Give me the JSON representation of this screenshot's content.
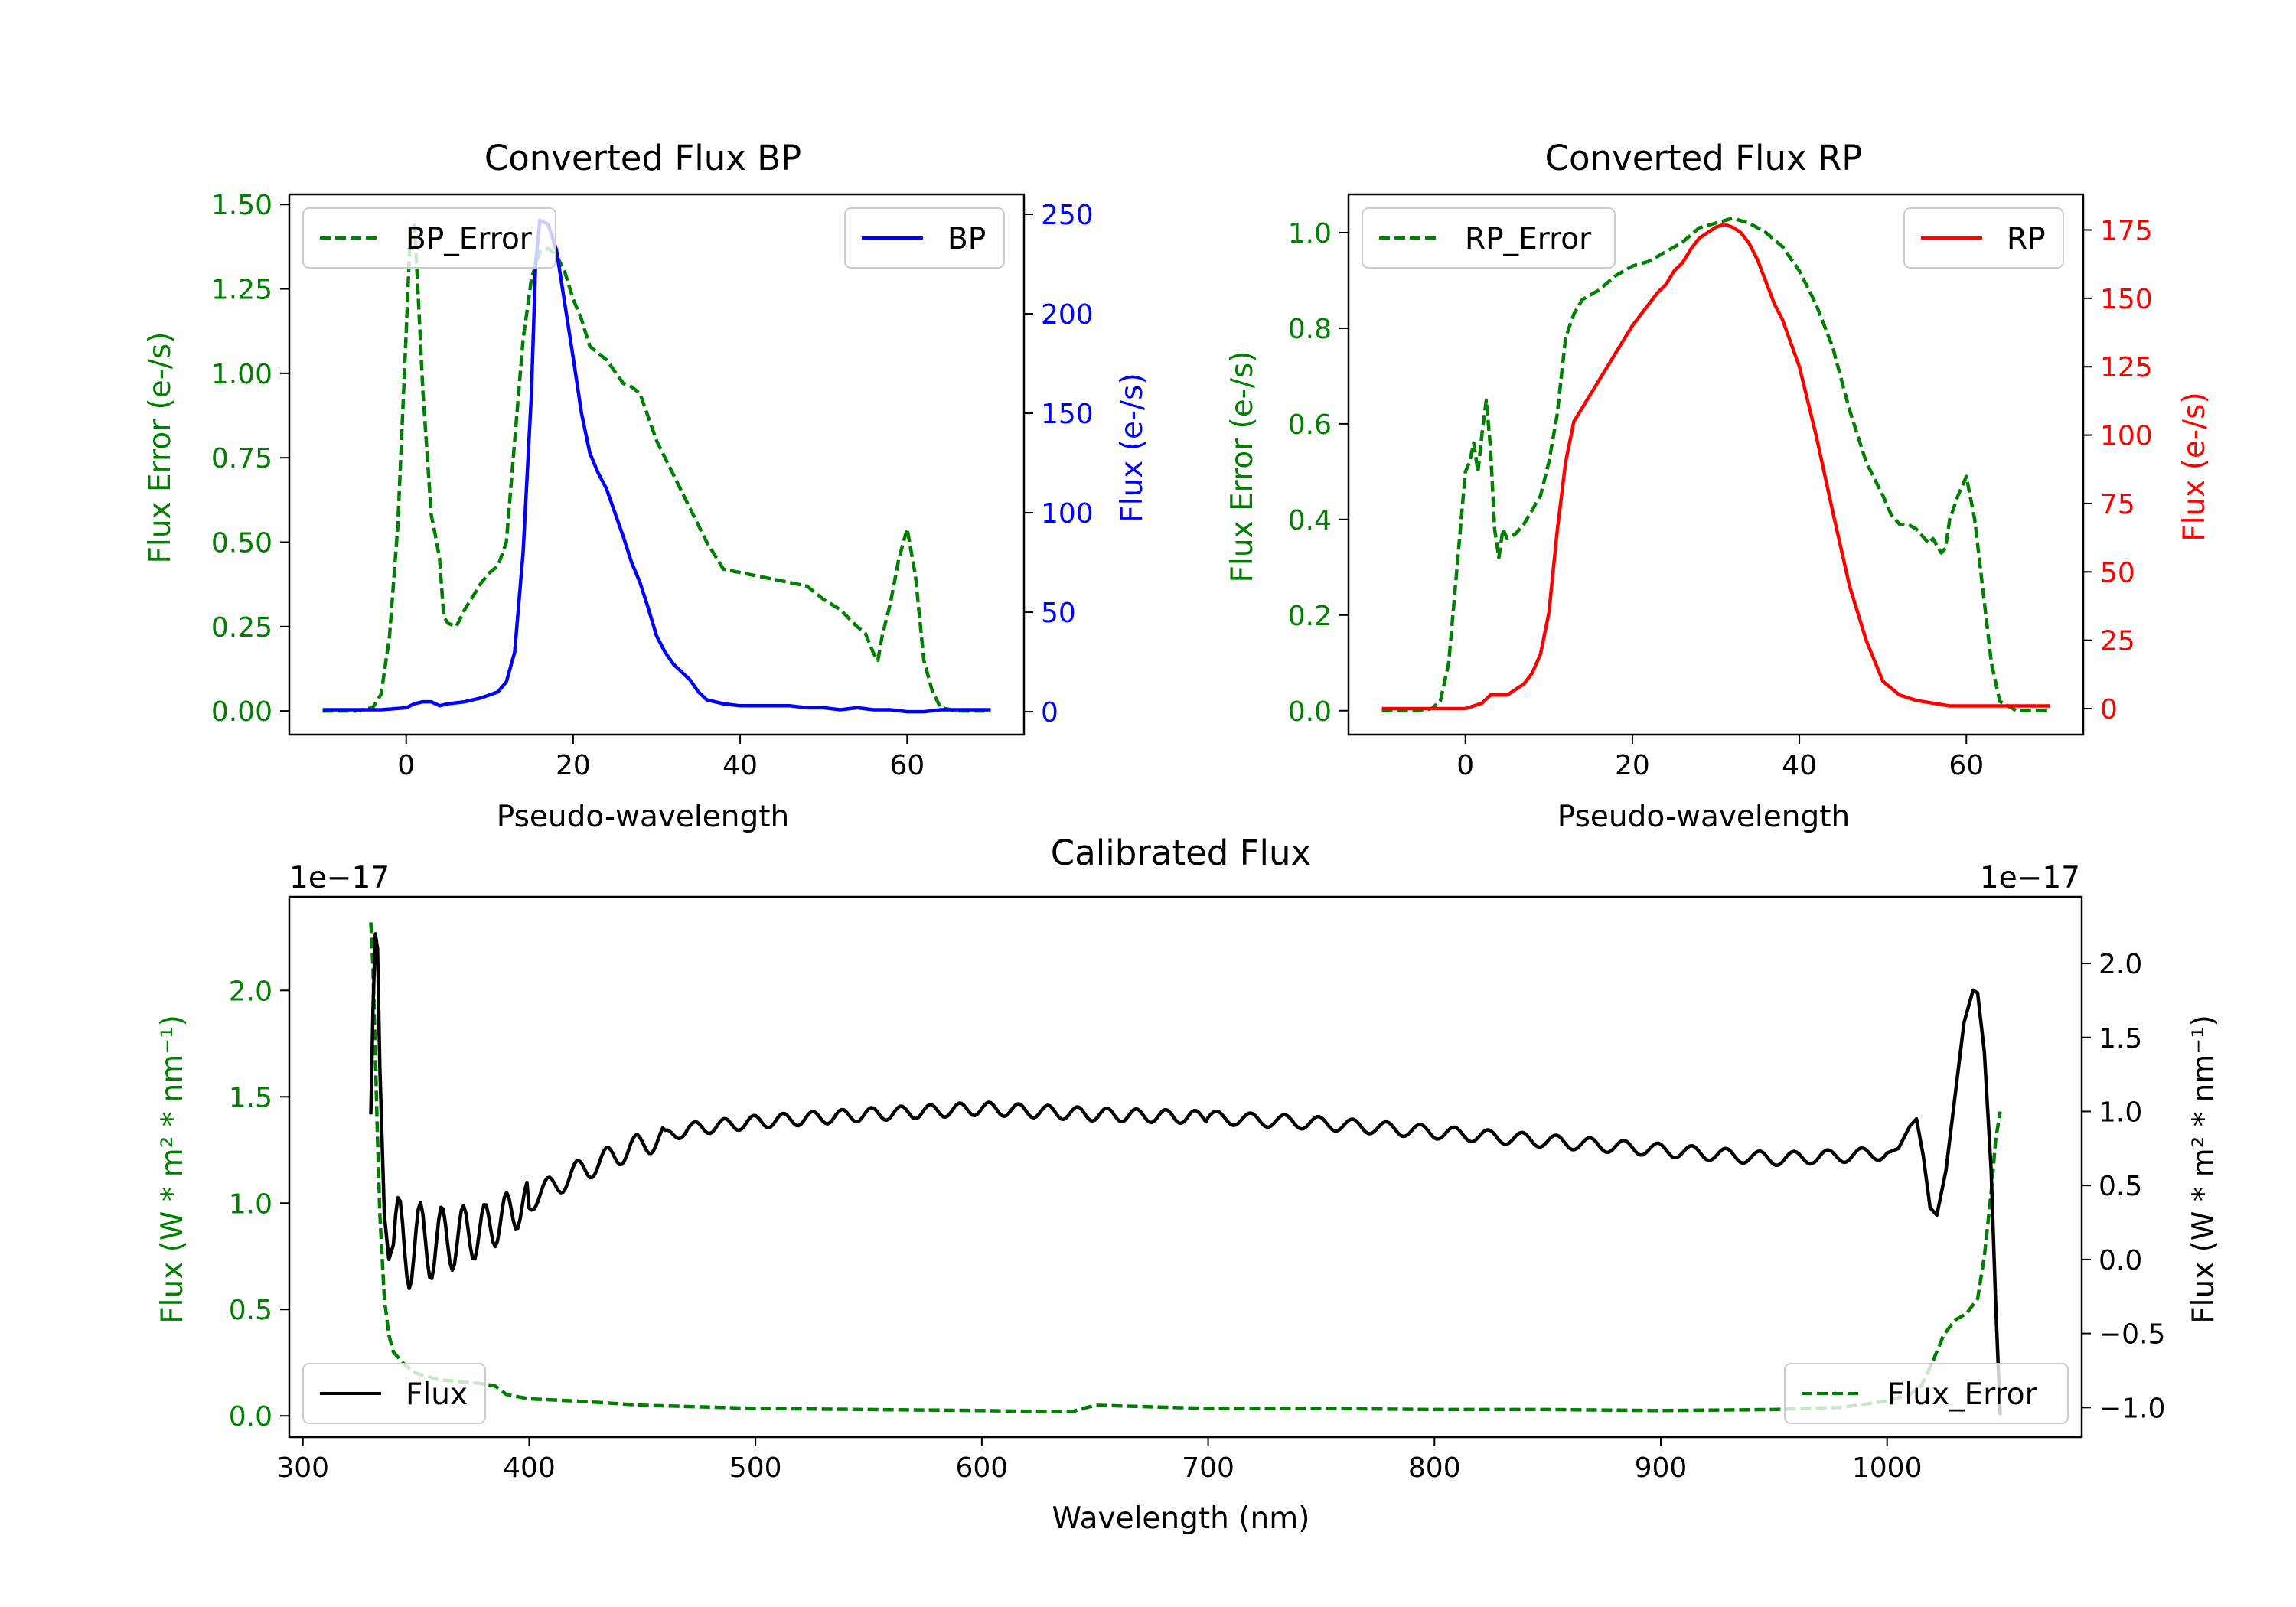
{
  "chart_data": [
    {
      "id": "bp",
      "type": "line",
      "title": "Converted Flux BP",
      "xlabel": "Pseudo-wavelength",
      "ylabel_left": "Flux Error (e-/s)",
      "ylabel_right": "Flux (e-/s)",
      "xlim": [
        -14,
        74
      ],
      "ylim_left": [
        -0.07,
        1.53
      ],
      "ylim_right": [
        -11.5,
        260
      ],
      "xticks": [
        0,
        20,
        40,
        60
      ],
      "yticks_left": [
        0.0,
        0.25,
        0.5,
        0.75,
        1.0,
        1.25,
        1.5
      ],
      "yticks_left_labels": [
        "0.00",
        "0.25",
        "0.50",
        "0.75",
        "1.00",
        "1.25",
        "1.50"
      ],
      "yticks_right": [
        0,
        50,
        100,
        150,
        200,
        250
      ],
      "left_color": "#008000",
      "right_color": "#0000ff",
      "legend_left": {
        "label": "BP_Error",
        "position": "upper left"
      },
      "legend_right": {
        "label": "BP",
        "position": "upper right"
      },
      "series": [
        {
          "name": "BP_Error",
          "axis": "left",
          "color": "#008000",
          "style": "dashed",
          "x": [
            -10,
            -6,
            -4,
            -3,
            -2,
            -1,
            0,
            0.5,
            1,
            1.5,
            2,
            3,
            3.5,
            4,
            4.5,
            5,
            6,
            7,
            8,
            9,
            10,
            11,
            12,
            13,
            14,
            15,
            16,
            17,
            18,
            19,
            20,
            21,
            22,
            24,
            26,
            27,
            28,
            30,
            32,
            34,
            36,
            38,
            40,
            42,
            44,
            46,
            48,
            50,
            52,
            54,
            55,
            56,
            56.5,
            57,
            58,
            59,
            60,
            61,
            62,
            63,
            64,
            66,
            70
          ],
          "y": [
            0,
            0,
            0.01,
            0.05,
            0.22,
            0.55,
            1.12,
            1.42,
            1.44,
            1.2,
            0.95,
            0.58,
            0.52,
            0.45,
            0.28,
            0.26,
            0.25,
            0.3,
            0.34,
            0.38,
            0.41,
            0.43,
            0.5,
            0.8,
            1.1,
            1.28,
            1.36,
            1.37,
            1.35,
            1.3,
            1.22,
            1.16,
            1.08,
            1.04,
            0.97,
            0.96,
            0.94,
            0.8,
            0.7,
            0.6,
            0.5,
            0.42,
            0.41,
            0.4,
            0.39,
            0.38,
            0.37,
            0.33,
            0.3,
            0.25,
            0.23,
            0.17,
            0.15,
            0.22,
            0.32,
            0.45,
            0.54,
            0.4,
            0.15,
            0.06,
            0.01,
            0,
            0
          ]
        },
        {
          "name": "BP",
          "axis": "right",
          "color": "#0000ff",
          "style": "solid",
          "x": [
            -10,
            -5,
            -3,
            0,
            1,
            2,
            3,
            4,
            5,
            7,
            9,
            11,
            12,
            13,
            14,
            15,
            15.5,
            16,
            17,
            18,
            19,
            20,
            21,
            22,
            23,
            24,
            25,
            26,
            27,
            28,
            29,
            30,
            31,
            32,
            33,
            34,
            35,
            36,
            38,
            40,
            42,
            44,
            46,
            48,
            50,
            52,
            54,
            56,
            58,
            60,
            62,
            64,
            66,
            68,
            70
          ],
          "y": [
            1,
            1,
            1,
            2,
            4,
            5,
            5,
            3,
            4,
            5,
            7,
            10,
            15,
            30,
            80,
            160,
            225,
            247,
            245,
            232,
            205,
            178,
            150,
            130,
            120,
            112,
            100,
            88,
            75,
            65,
            52,
            38,
            30,
            24,
            20,
            16,
            10,
            6,
            4,
            3,
            3,
            3,
            3,
            2,
            2,
            1,
            2,
            1,
            1,
            0,
            0,
            1,
            1,
            1,
            1
          ]
        }
      ]
    },
    {
      "id": "rp",
      "type": "line",
      "title": "Converted Flux RP",
      "xlabel": "Pseudo-wavelength",
      "ylabel_left": "Flux Error (e-/s)",
      "ylabel_right": "Flux (e-/s)",
      "xlim": [
        -14,
        74
      ],
      "ylim_left": [
        -0.05,
        1.08
      ],
      "ylim_right": [
        -9.5,
        188
      ],
      "xticks": [
        0,
        20,
        40,
        60
      ],
      "yticks_left": [
        0.0,
        0.2,
        0.4,
        0.6,
        0.8,
        1.0
      ],
      "yticks_left_labels": [
        "0.0",
        "0.2",
        "0.4",
        "0.6",
        "0.8",
        "1.0"
      ],
      "yticks_right": [
        0,
        25,
        50,
        75,
        100,
        125,
        150,
        175
      ],
      "left_color": "#008000",
      "right_color": "#ff0000",
      "legend_left": {
        "label": "RP_Error",
        "position": "upper left"
      },
      "legend_right": {
        "label": "RP",
        "position": "upper right"
      },
      "series": [
        {
          "name": "RP_Error",
          "axis": "left",
          "color": "#008000",
          "style": "dashed",
          "x": [
            -10,
            -5,
            -4,
            -3,
            -2,
            -1,
            0,
            0.5,
            1,
            1.5,
            2,
            2.5,
            3,
            3.5,
            4,
            4.5,
            5,
            6,
            7,
            8,
            9,
            10,
            11,
            12,
            13,
            14,
            16,
            18,
            20,
            22,
            24,
            26,
            28,
            30,
            32,
            34,
            36,
            38,
            40,
            42,
            44,
            46,
            48,
            50,
            51,
            52,
            53,
            54,
            55,
            55.5,
            56,
            57,
            57.5,
            58,
            59,
            60,
            61,
            62,
            63,
            64,
            66,
            70
          ],
          "y": [
            0,
            0,
            0.005,
            0.02,
            0.1,
            0.3,
            0.5,
            0.52,
            0.56,
            0.5,
            0.58,
            0.65,
            0.55,
            0.38,
            0.32,
            0.38,
            0.36,
            0.37,
            0.39,
            0.42,
            0.45,
            0.52,
            0.62,
            0.78,
            0.83,
            0.86,
            0.88,
            0.91,
            0.93,
            0.94,
            0.96,
            0.98,
            1.01,
            1.02,
            1.03,
            1.02,
            1.0,
            0.97,
            0.92,
            0.85,
            0.76,
            0.63,
            0.52,
            0.45,
            0.41,
            0.39,
            0.39,
            0.38,
            0.36,
            0.35,
            0.36,
            0.33,
            0.34,
            0.4,
            0.45,
            0.49,
            0.4,
            0.25,
            0.1,
            0.02,
            0,
            0
          ]
        },
        {
          "name": "RP",
          "axis": "right",
          "color": "#ff0000",
          "style": "solid",
          "x": [
            -10,
            -5,
            0,
            1,
            2,
            3,
            4,
            5,
            6,
            7,
            8,
            9,
            10,
            11,
            12,
            13,
            14,
            16,
            18,
            20,
            22,
            23,
            24,
            25,
            26,
            27,
            28,
            29,
            30,
            31,
            32,
            33,
            34,
            35,
            36,
            37,
            38,
            40,
            42,
            44,
            46,
            48,
            50,
            52,
            54,
            56,
            58,
            60,
            62,
            64,
            66,
            68,
            70
          ],
          "y": [
            0,
            0,
            0,
            1,
            2,
            5,
            5,
            5,
            7,
            9,
            13,
            20,
            35,
            65,
            90,
            105,
            110,
            120,
            130,
            140,
            148,
            152,
            155,
            160,
            163,
            168,
            172,
            174,
            176,
            177,
            176,
            174,
            170,
            164,
            156,
            148,
            142,
            125,
            100,
            72,
            45,
            25,
            10,
            5,
            3,
            2,
            1,
            1,
            1,
            1,
            1,
            1,
            1
          ]
        }
      ]
    },
    {
      "id": "cal",
      "type": "line",
      "title": "Calibrated Flux",
      "xlabel": "Wavelength (nm)",
      "ylabel_left": "Flux (W * m² * nm⁻¹)",
      "ylabel_right": "Flux (W * m² * nm⁻¹)",
      "offset_left": "1e−17",
      "offset_right": "1e−17",
      "xlim": [
        294,
        1086
      ],
      "ylim_left": [
        -0.1,
        2.44
      ],
      "ylim_right": [
        -1.2,
        2.45
      ],
      "xticks": [
        300,
        400,
        500,
        600,
        700,
        800,
        900,
        1000
      ],
      "yticks_left": [
        0.0,
        0.5,
        1.0,
        1.5,
        2.0
      ],
      "yticks_left_labels": [
        "0.0",
        "0.5",
        "1.0",
        "1.5",
        "2.0"
      ],
      "yticks_right": [
        -1.0,
        -0.5,
        0.0,
        0.5,
        1.0,
        1.5,
        2.0
      ],
      "yticks_right_labels": [
        "−1.0",
        "−0.5",
        "0.0",
        "0.5",
        "1.0",
        "1.5",
        "2.0"
      ],
      "left_color": "#008000",
      "right_color": "#000000",
      "legend_left": {
        "label": "Flux",
        "position": "lower left"
      },
      "legend_right": {
        "label": "Flux_Error",
        "position": "lower right"
      },
      "series": [
        {
          "name": "Flux_Error",
          "axis": "left",
          "color": "#008000",
          "style": "dashed",
          "x": [
            330,
            331,
            332,
            333,
            334,
            336,
            338,
            340,
            345,
            350,
            360,
            370,
            380,
            385,
            390,
            400,
            420,
            450,
            500,
            550,
            600,
            630,
            640,
            650,
            700,
            750,
            800,
            850,
            900,
            950,
            980,
            1000,
            1010,
            1015,
            1020,
            1025,
            1030,
            1035,
            1040,
            1043,
            1046,
            1048,
            1050
          ],
          "y": [
            2.32,
            2.1,
            1.7,
            1.3,
            0.95,
            0.55,
            0.38,
            0.3,
            0.24,
            0.2,
            0.17,
            0.16,
            0.15,
            0.14,
            0.1,
            0.08,
            0.07,
            0.05,
            0.035,
            0.03,
            0.025,
            0.02,
            0.02,
            0.05,
            0.035,
            0.035,
            0.03,
            0.03,
            0.025,
            0.03,
            0.04,
            0.07,
            0.1,
            0.14,
            0.25,
            0.38,
            0.45,
            0.48,
            0.55,
            0.75,
            1.05,
            1.3,
            1.43
          ]
        }
      ],
      "flux_series": {
        "name": "Flux",
        "axis": "right",
        "color": "#000000",
        "style": "solid"
      }
    }
  ]
}
